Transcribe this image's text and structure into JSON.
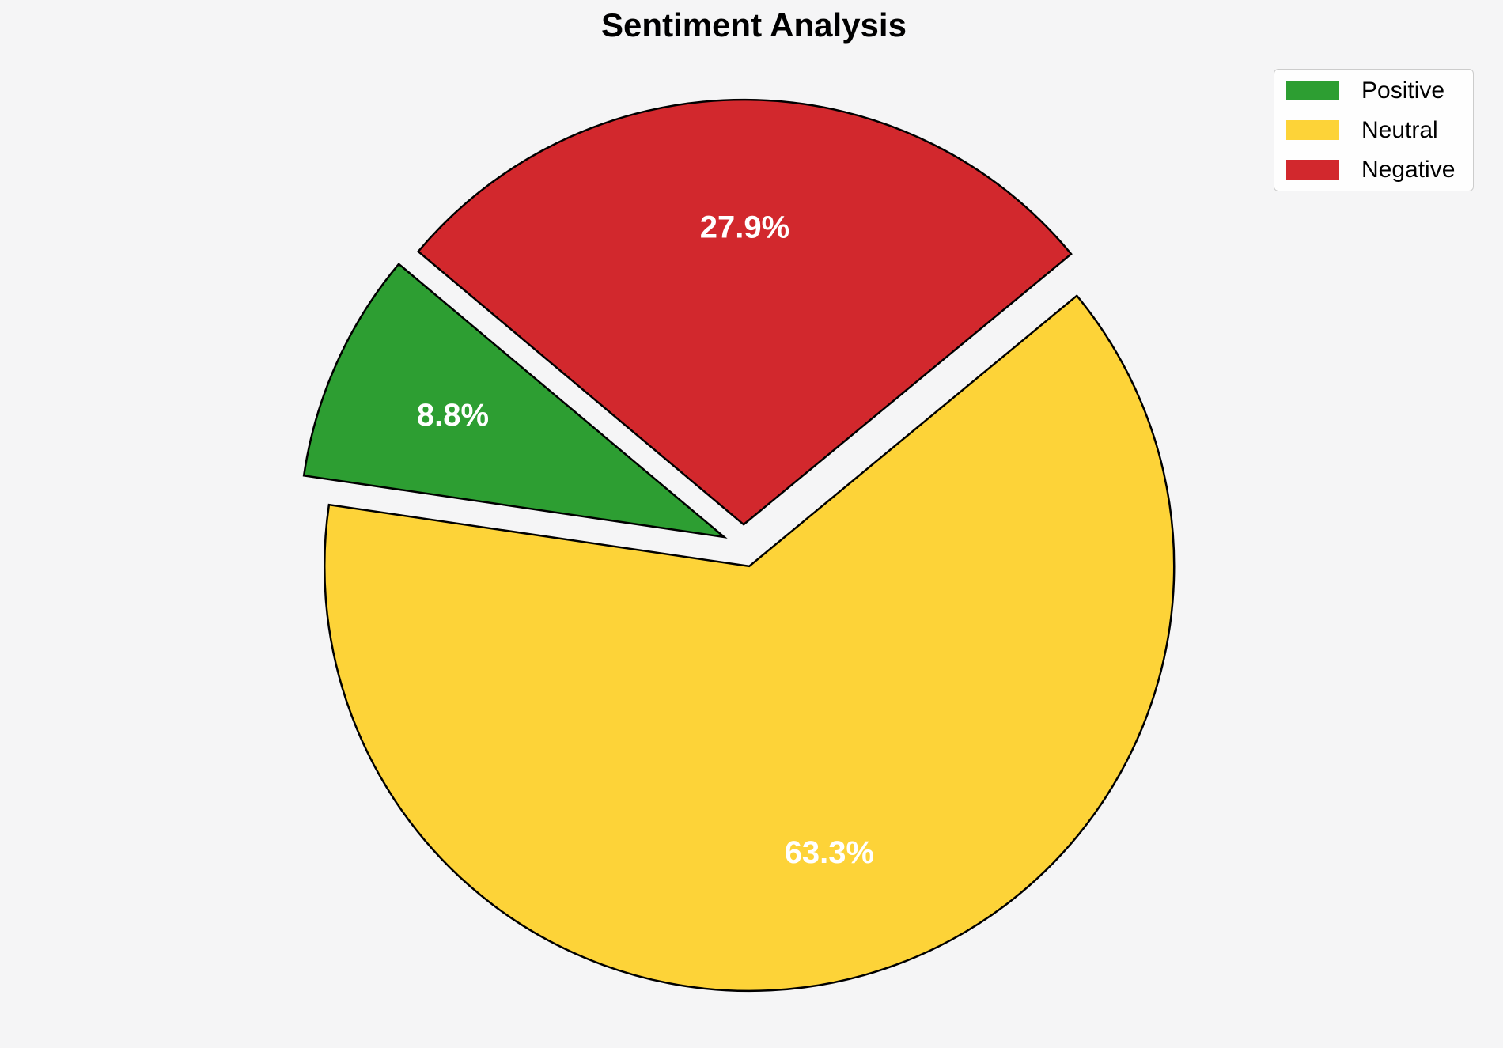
{
  "figure": {
    "background": "#f5f5f6"
  },
  "chart_data": {
    "type": "pie",
    "title": "Sentiment Analysis",
    "labels": [
      "Positive",
      "Neutral",
      "Negative"
    ],
    "values": [
      8.8,
      63.3,
      27.9
    ],
    "percent_labels": [
      "8.8%",
      "63.3%",
      "27.9%"
    ],
    "colors": [
      "#2d9e32",
      "#fdd338",
      "#d2282d"
    ],
    "edge_color": "#000000",
    "edge_width": 2.5,
    "start_angle": 140,
    "counterclockwise": true,
    "explode": [
      0.05,
      0.05,
      0.05
    ],
    "pct_distance": 0.7,
    "pct_label_color": "#ffffff",
    "legend_position": "upper right",
    "legend_border_color": "#cccccc",
    "legend_background": "#ffffff"
  }
}
